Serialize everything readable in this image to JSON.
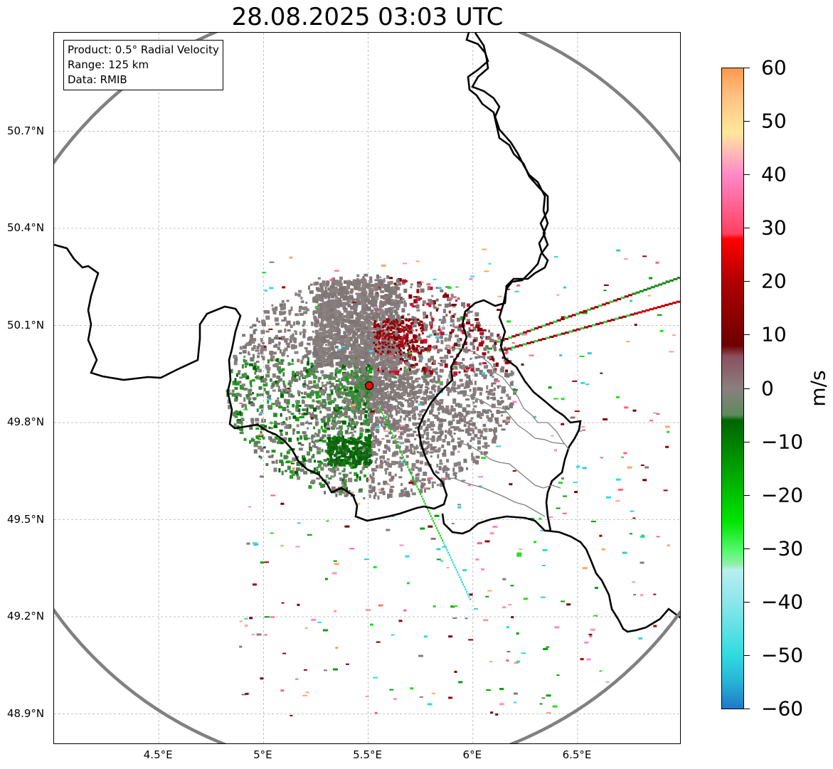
{
  "title": "28.08.2025 03:03 UTC",
  "info": {
    "product": "Product: 0.5° Radial Velocity",
    "range": "Range: 125 km",
    "data": "Data: RMIB"
  },
  "axes": {
    "lat_ticks": [
      {
        "value": 50.7,
        "label": "50.7°N"
      },
      {
        "value": 50.4,
        "label": "50.4°N"
      },
      {
        "value": 50.1,
        "label": "50.1°N"
      },
      {
        "value": 49.8,
        "label": "49.8°N"
      },
      {
        "value": 49.5,
        "label": "49.5°N"
      },
      {
        "value": 49.2,
        "label": "49.2°N"
      },
      {
        "value": 48.9,
        "label": "48.9°N"
      }
    ],
    "lon_ticks": [
      {
        "value": 4.5,
        "label": "4.5°E"
      },
      {
        "value": 5.0,
        "label": "5°E"
      },
      {
        "value": 5.5,
        "label": "5.5°E"
      },
      {
        "value": 6.0,
        "label": "6°E"
      },
      {
        "value": 6.5,
        "label": "6.5°E"
      }
    ],
    "lon_range": [
      4.0,
      7.0
    ],
    "lat_range": [
      48.8,
      51.0
    ],
    "grid": true
  },
  "radar_site": {
    "lon": 5.505,
    "lat": 49.914
  },
  "colorbar": {
    "unit": "m/s",
    "min": -60,
    "max": 60,
    "ticks": [
      "60",
      "50",
      "40",
      "30",
      "20",
      "10",
      "0",
      "−10",
      "−20",
      "−30",
      "−40",
      "−50",
      "−60"
    ],
    "stops": [
      {
        "v": -60,
        "c": "#1f78c8"
      },
      {
        "v": -55,
        "c": "#27b4d6"
      },
      {
        "v": -50,
        "c": "#2fdbe0"
      },
      {
        "v": -40,
        "c": "#8de6ea"
      },
      {
        "v": -34,
        "c": "#b8eef0"
      },
      {
        "v": -33,
        "c": "#8ff0a8"
      },
      {
        "v": -30,
        "c": "#4ef765"
      },
      {
        "v": -25,
        "c": "#00e600"
      },
      {
        "v": -15,
        "c": "#00a000"
      },
      {
        "v": -6,
        "c": "#006400"
      },
      {
        "v": -5,
        "c": "#5c8a5c"
      },
      {
        "v": 0,
        "c": "#8a7f7f"
      },
      {
        "v": 6,
        "c": "#8a5060"
      },
      {
        "v": 8,
        "c": "#6e0000"
      },
      {
        "v": 20,
        "c": "#b00000"
      },
      {
        "v": 28,
        "c": "#ff0000"
      },
      {
        "v": 29,
        "c": "#ff4060"
      },
      {
        "v": 40,
        "c": "#ff88c8"
      },
      {
        "v": 44,
        "c": "#ffb8b8"
      },
      {
        "v": 48,
        "c": "#ffe89a"
      },
      {
        "v": 55,
        "c": "#ffc080"
      },
      {
        "v": 60,
        "c": "#ff9850"
      }
    ]
  },
  "colors": {
    "range_ring": "#808080",
    "border": "#000000",
    "region_border": "#808080",
    "site_marker": "#e01010"
  }
}
